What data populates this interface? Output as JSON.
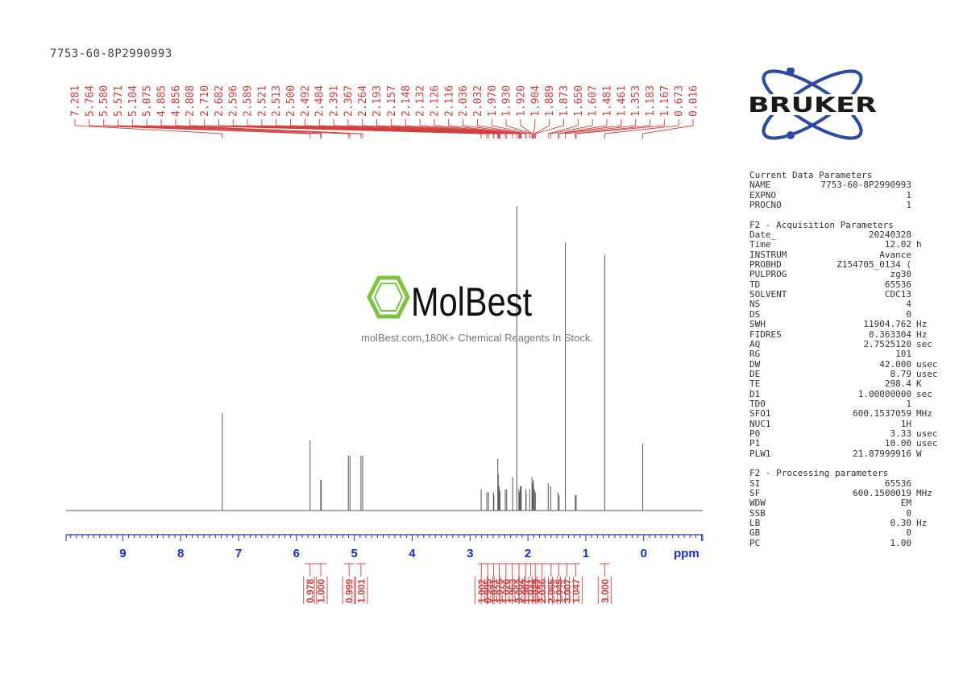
{
  "sample_title": "7753-60-8P2990993",
  "logo": {
    "text": "BRUKER",
    "ring_color": "#2c4a9e",
    "text_color": "#1a1a1a"
  },
  "watermark": {
    "brand": "MolBest",
    "tagline": "molBest.com,180K+ Chemical Reagents In Stock.",
    "hex_color": "#7dc242"
  },
  "colors": {
    "spectrum": "#555555",
    "labels": "#d04040",
    "axis": "#1a2ecc"
  },
  "params": {
    "sections": [
      {
        "title": "Current Data Parameters",
        "rows": [
          {
            "name": "NAME",
            "value": "7753-60-8P2990993",
            "unit": ""
          },
          {
            "name": "EXPNO",
            "value": "1",
            "unit": ""
          },
          {
            "name": "PROCNO",
            "value": "1",
            "unit": ""
          }
        ]
      },
      {
        "title": "F2 - Acquisition Parameters",
        "rows": [
          {
            "name": "Date_",
            "value": "20240328",
            "unit": ""
          },
          {
            "name": "Time",
            "value": "12.02",
            "unit": "h"
          },
          {
            "name": "INSTRUM",
            "value": "Avance",
            "unit": ""
          },
          {
            "name": "PROBHD",
            "value": "Z154705_0134 (",
            "unit": ""
          },
          {
            "name": "PULPROG",
            "value": "zg30",
            "unit": ""
          },
          {
            "name": "TD",
            "value": "65536",
            "unit": ""
          },
          {
            "name": "SOLVENT",
            "value": "CDC13",
            "unit": ""
          },
          {
            "name": "NS",
            "value": "4",
            "unit": ""
          },
          {
            "name": "DS",
            "value": "0",
            "unit": ""
          },
          {
            "name": "SWH",
            "value": "11904.762",
            "unit": "Hz"
          },
          {
            "name": "FIDRES",
            "value": "0.363304",
            "unit": "Hz"
          },
          {
            "name": "AQ",
            "value": "2.7525120",
            "unit": "sec"
          },
          {
            "name": "RG",
            "value": "101",
            "unit": ""
          },
          {
            "name": "DW",
            "value": "42.000",
            "unit": "usec"
          },
          {
            "name": "DE",
            "value": "8.79",
            "unit": "usec"
          },
          {
            "name": "TE",
            "value": "298.4",
            "unit": "K"
          },
          {
            "name": "D1",
            "value": "1.00000000",
            "unit": "sec"
          },
          {
            "name": "TD0",
            "value": "1",
            "unit": ""
          },
          {
            "name": "SFO1",
            "value": "600.1537059",
            "unit": "MHz"
          },
          {
            "name": "NUC1",
            "value": "1H",
            "unit": ""
          },
          {
            "name": "P0",
            "value": "3.33",
            "unit": "usec"
          },
          {
            "name": "P1",
            "value": "10.00",
            "unit": "usec"
          },
          {
            "name": "PLW1",
            "value": "21.87999916",
            "unit": "W"
          }
        ]
      },
      {
        "title": "F2 - Processing parameters",
        "rows": [
          {
            "name": "SI",
            "value": "65536",
            "unit": ""
          },
          {
            "name": "SF",
            "value": "600.1500019",
            "unit": "MHz"
          },
          {
            "name": "WDW",
            "value": "EM",
            "unit": ""
          },
          {
            "name": "SSB",
            "value": "0",
            "unit": ""
          },
          {
            "name": "LB",
            "value": "0.30",
            "unit": "Hz"
          },
          {
            "name": "GB",
            "value": "0",
            "unit": ""
          },
          {
            "name": "PC",
            "value": "1.00",
            "unit": ""
          }
        ]
      }
    ]
  },
  "chart_data": {
    "type": "line",
    "xlabel": "ppm",
    "xlim": [
      9.98,
      -1.02
    ],
    "x_ticks": [
      9,
      8,
      7,
      6,
      5,
      4,
      3,
      2,
      1,
      0
    ],
    "x_reversed": true,
    "peak_labels": [
      "7.281",
      "5.764",
      "5.580",
      "5.571",
      "5.104",
      "5.075",
      "4.885",
      "4.856",
      "2.808",
      "2.710",
      "2.682",
      "2.596",
      "2.589",
      "2.521",
      "2.513",
      "2.500",
      "2.492",
      "2.484",
      "2.391",
      "2.367",
      "2.264",
      "2.193",
      "2.157",
      "2.148",
      "2.132",
      "2.126",
      "2.116",
      "2.036",
      "2.032",
      "1.970",
      "1.930",
      "1.920",
      "1.904",
      "1.889",
      "1.873",
      "1.650",
      "1.607",
      "1.481",
      "1.461",
      "1.353",
      "1.183",
      "1.167",
      "0.673",
      "0.016"
    ],
    "peaks": [
      {
        "ppm": 7.281,
        "height": 0.32
      },
      {
        "ppm": 5.764,
        "height": 0.23
      },
      {
        "ppm": 5.58,
        "height": 0.1
      },
      {
        "ppm": 5.571,
        "height": 0.1
      },
      {
        "ppm": 5.104,
        "height": 0.18
      },
      {
        "ppm": 5.075,
        "height": 0.18
      },
      {
        "ppm": 4.885,
        "height": 0.18
      },
      {
        "ppm": 4.856,
        "height": 0.18
      },
      {
        "ppm": 2.808,
        "height": 0.07
      },
      {
        "ppm": 2.71,
        "height": 0.06
      },
      {
        "ppm": 2.682,
        "height": 0.06
      },
      {
        "ppm": 2.596,
        "height": 0.06
      },
      {
        "ppm": 2.589,
        "height": 0.05
      },
      {
        "ppm": 2.521,
        "height": 0.17
      },
      {
        "ppm": 2.513,
        "height": 0.12
      },
      {
        "ppm": 2.5,
        "height": 0.08
      },
      {
        "ppm": 2.492,
        "height": 0.07
      },
      {
        "ppm": 2.484,
        "height": 0.06
      },
      {
        "ppm": 2.391,
        "height": 0.07
      },
      {
        "ppm": 2.367,
        "height": 0.07
      },
      {
        "ppm": 2.264,
        "height": 0.11
      },
      {
        "ppm": 2.193,
        "height": 1.0
      },
      {
        "ppm": 2.157,
        "height": 0.07
      },
      {
        "ppm": 2.148,
        "height": 0.06
      },
      {
        "ppm": 2.132,
        "height": 0.08
      },
      {
        "ppm": 2.126,
        "height": 0.07
      },
      {
        "ppm": 2.116,
        "height": 0.08
      },
      {
        "ppm": 2.036,
        "height": 0.07
      },
      {
        "ppm": 2.032,
        "height": 0.06
      },
      {
        "ppm": 1.97,
        "height": 0.07
      },
      {
        "ppm": 1.93,
        "height": 0.11
      },
      {
        "ppm": 1.92,
        "height": 0.09
      },
      {
        "ppm": 1.904,
        "height": 0.1
      },
      {
        "ppm": 1.889,
        "height": 0.07
      },
      {
        "ppm": 1.873,
        "height": 0.06
      },
      {
        "ppm": 1.65,
        "height": 0.09
      },
      {
        "ppm": 1.607,
        "height": 0.08
      },
      {
        "ppm": 1.481,
        "height": 0.06
      },
      {
        "ppm": 1.461,
        "height": 0.05
      },
      {
        "ppm": 1.353,
        "height": 0.88
      },
      {
        "ppm": 1.183,
        "height": 0.05
      },
      {
        "ppm": 1.167,
        "height": 0.05
      },
      {
        "ppm": 0.673,
        "height": 0.84
      },
      {
        "ppm": 0.016,
        "height": 0.22
      }
    ],
    "integrals": [
      {
        "from": 5.85,
        "to": 5.68,
        "value": "0.978"
      },
      {
        "from": 5.68,
        "to": 5.48,
        "value": "1.000"
      },
      {
        "from": 5.18,
        "to": 5.0,
        "value": "0.999"
      },
      {
        "from": 4.97,
        "to": 4.8,
        "value": "1.001"
      },
      {
        "from": 2.86,
        "to": 2.75,
        "value": "1.002"
      },
      {
        "from": 2.75,
        "to": 2.64,
        "value": "0.995"
      },
      {
        "from": 2.64,
        "to": 2.55,
        "value": "1.071"
      },
      {
        "from": 2.55,
        "to": 2.44,
        "value": "1.975"
      },
      {
        "from": 2.44,
        "to": 2.32,
        "value": "1.026"
      },
      {
        "from": 2.32,
        "to": 2.22,
        "value": "1.963"
      },
      {
        "from": 2.22,
        "to": 2.09,
        "value": "3.062"
      },
      {
        "from": 2.09,
        "to": 1.99,
        "value": "1.987"
      },
      {
        "from": 1.99,
        "to": 1.91,
        "value": "1.031"
      },
      {
        "from": 1.91,
        "to": 1.84,
        "value": "1.025"
      },
      {
        "from": 1.84,
        "to": 1.67,
        "value": "2.036"
      },
      {
        "from": 1.67,
        "to": 1.53,
        "value": "2.065"
      },
      {
        "from": 1.53,
        "to": 1.4,
        "value": "1.045"
      },
      {
        "from": 1.4,
        "to": 1.25,
        "value": "3.007"
      },
      {
        "from": 1.25,
        "to": 1.1,
        "value": "1.047"
      },
      {
        "from": 0.76,
        "to": 0.59,
        "value": "3.000"
      }
    ]
  }
}
